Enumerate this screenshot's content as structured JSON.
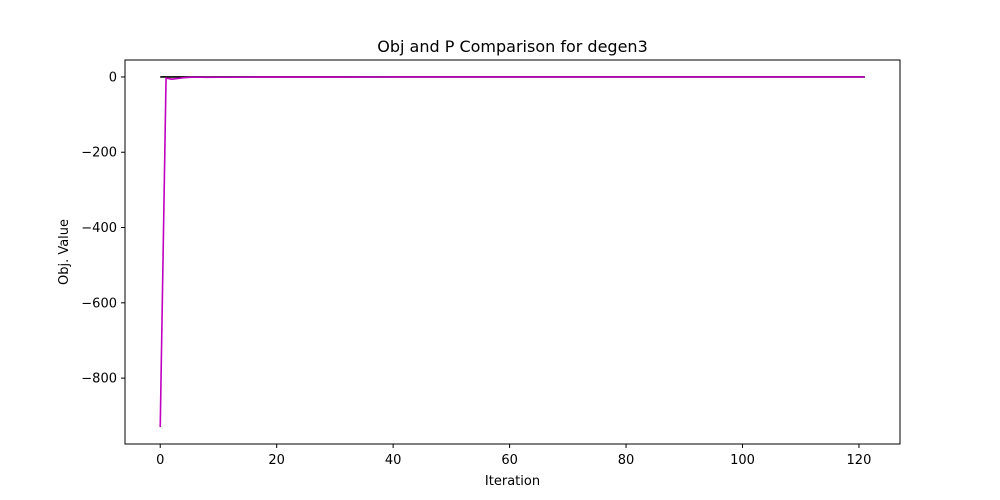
{
  "chart_data": {
    "type": "line",
    "title": "Obj and P Comparison for degen3",
    "xlabel": "Iteration",
    "ylabel": "Obj. Value",
    "xlim": [
      -6.05,
      127.05
    ],
    "ylim": [
      -975,
      45
    ],
    "xticks": [
      0,
      20,
      40,
      60,
      80,
      100,
      120
    ],
    "yticks": [
      0,
      -200,
      -400,
      -600,
      -800
    ],
    "ytick_labels": [
      "0",
      "−200",
      "−400",
      "−600",
      "−800"
    ],
    "grid": false,
    "series": [
      {
        "color": "#000000",
        "x": [
          0,
          121
        ],
        "y": [
          0,
          0
        ]
      },
      {
        "color": "#bf00bf",
        "x": [
          0,
          1,
          2,
          3,
          4,
          5,
          6,
          8,
          10,
          15,
          20,
          30,
          40,
          60,
          80,
          100,
          121
        ],
        "y": [
          -930,
          -3,
          -6,
          -4,
          -2,
          -1,
          -0.5,
          -1,
          -0.8,
          -0.5,
          -0.3,
          -0.2,
          -0.1,
          -0.05,
          -0.05,
          -0.02,
          -0.02
        ]
      }
    ]
  }
}
